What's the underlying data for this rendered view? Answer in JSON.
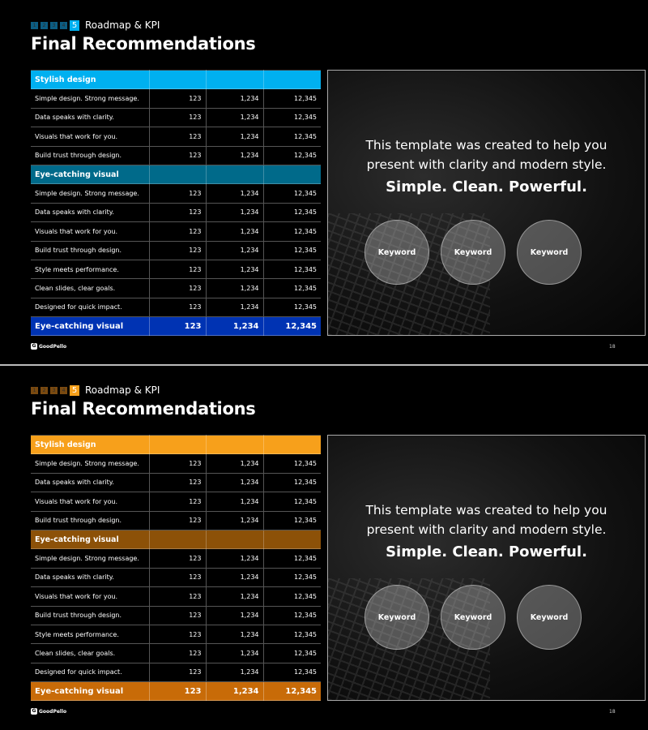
{
  "slides": [
    {
      "theme": {
        "header": "#00b0f0",
        "sub": "#006a8a",
        "total": "#0033b3",
        "nav": "#0c5d82",
        "nav_current": "#00b0f0"
      },
      "nav_numbers": [
        "1",
        "2",
        "3",
        "4",
        "5"
      ],
      "section": "Roadmap & KPI",
      "title": "Final Recommendations",
      "table": {
        "group1_header": "Stylish design",
        "group1_rows": [
          [
            "Simple design. Strong message.",
            "123",
            "1,234",
            "12,345"
          ],
          [
            "Data speaks with clarity.",
            "123",
            "1,234",
            "12,345"
          ],
          [
            "Visuals that work for you.",
            "123",
            "1,234",
            "12,345"
          ],
          [
            "Build trust through design.",
            "123",
            "1,234",
            "12,345"
          ]
        ],
        "group2_header": "Eye-catching visual",
        "group2_rows": [
          [
            "Simple design. Strong message.",
            "123",
            "1,234",
            "12,345"
          ],
          [
            "Data speaks with clarity.",
            "123",
            "1,234",
            "12,345"
          ],
          [
            "Visuals that work for you.",
            "123",
            "1,234",
            "12,345"
          ],
          [
            "Build trust through design.",
            "123",
            "1,234",
            "12,345"
          ],
          [
            "Style meets performance.",
            "123",
            "1,234",
            "12,345"
          ],
          [
            "Clean slides, clear goals.",
            "123",
            "1,234",
            "12,345"
          ],
          [
            "Designed for quick impact.",
            "123",
            "1,234",
            "12,345"
          ]
        ],
        "total": [
          "Eye-catching visual",
          "123",
          "1,234",
          "12,345"
        ]
      },
      "panel": {
        "line1": "This template was created to help you",
        "line2": "present with clarity and modern style.",
        "bold": "Simple. Clean. Powerful.",
        "keywords": [
          "Keyword",
          "Keyword",
          "Keyword"
        ]
      },
      "logo": "GoodPello",
      "page_number": "18"
    },
    {
      "theme": {
        "header": "#f7a01b",
        "sub": "#8c5108",
        "total": "#c86b08",
        "nav": "#7a4a10",
        "nav_current": "#f7a01b"
      },
      "nav_numbers": [
        "1",
        "2",
        "3",
        "4",
        "5"
      ],
      "section": "Roadmap & KPI",
      "title": "Final Recommendations",
      "table": {
        "group1_header": "Stylish design",
        "group1_rows": [
          [
            "Simple design. Strong message.",
            "123",
            "1,234",
            "12,345"
          ],
          [
            "Data speaks with clarity.",
            "123",
            "1,234",
            "12,345"
          ],
          [
            "Visuals that work for you.",
            "123",
            "1,234",
            "12,345"
          ],
          [
            "Build trust through design.",
            "123",
            "1,234",
            "12,345"
          ]
        ],
        "group2_header": "Eye-catching visual",
        "group2_rows": [
          [
            "Simple design. Strong message.",
            "123",
            "1,234",
            "12,345"
          ],
          [
            "Data speaks with clarity.",
            "123",
            "1,234",
            "12,345"
          ],
          [
            "Visuals that work for you.",
            "123",
            "1,234",
            "12,345"
          ],
          [
            "Build trust through design.",
            "123",
            "1,234",
            "12,345"
          ],
          [
            "Style meets performance.",
            "123",
            "1,234",
            "12,345"
          ],
          [
            "Clean slides, clear goals.",
            "123",
            "1,234",
            "12,345"
          ],
          [
            "Designed for quick impact.",
            "123",
            "1,234",
            "12,345"
          ]
        ],
        "total": [
          "Eye-catching visual",
          "123",
          "1,234",
          "12,345"
        ]
      },
      "panel": {
        "line1": "This template was created to help you",
        "line2": "present with clarity and modern style.",
        "bold": "Simple. Clean. Powerful.",
        "keywords": [
          "Keyword",
          "Keyword",
          "Keyword"
        ]
      },
      "logo": "GoodPello",
      "page_number": "18"
    }
  ]
}
